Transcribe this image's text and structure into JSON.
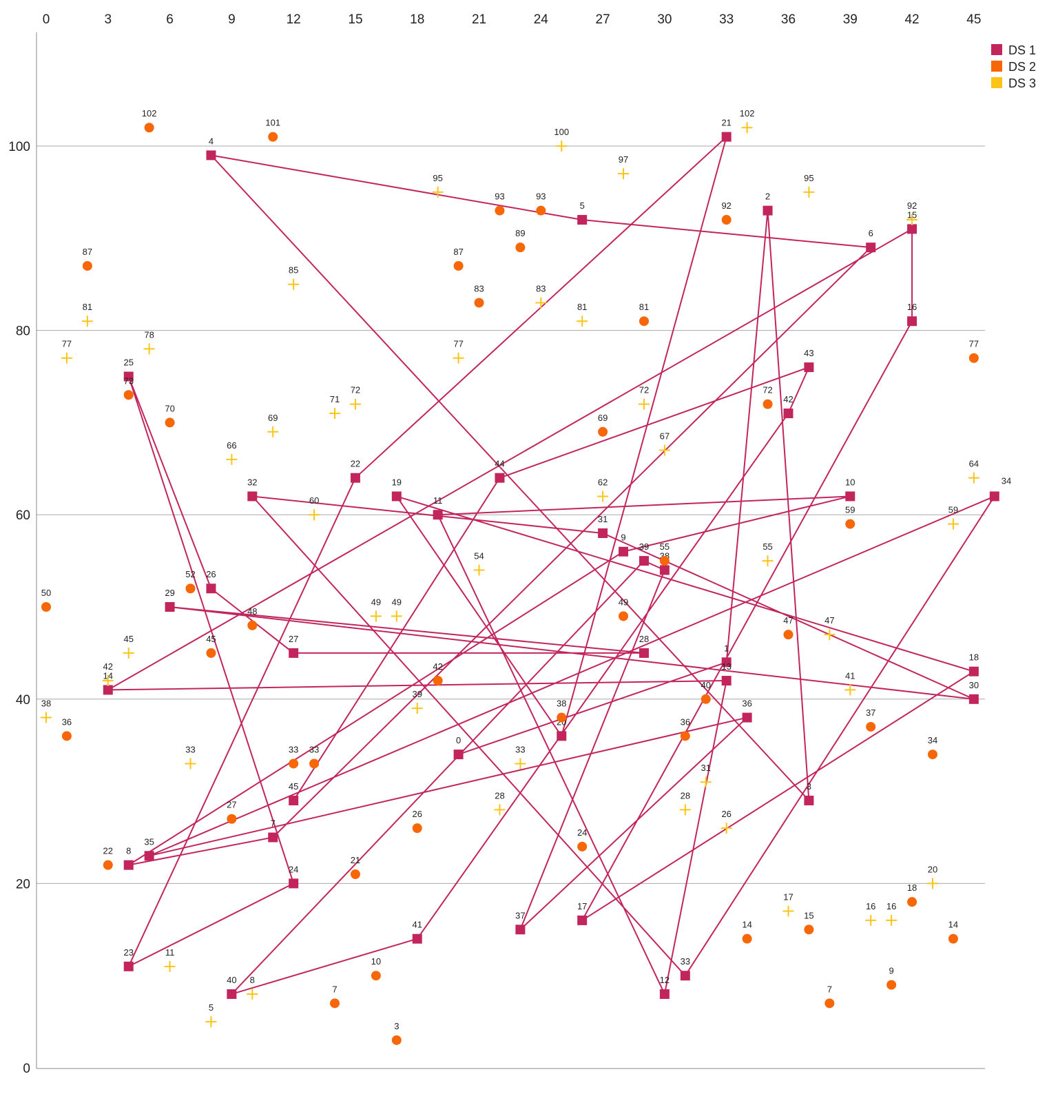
{
  "chart_data": {
    "type": "scatter",
    "title": "",
    "xlabel": "",
    "ylabel": "",
    "x_axis_position": "top",
    "xlim": [
      0,
      46
    ],
    "ylim": [
      0,
      112
    ],
    "xticks": [
      0,
      3,
      6,
      9,
      12,
      15,
      18,
      21,
      24,
      27,
      30,
      33,
      36,
      39,
      42,
      45
    ],
    "yticks": [
      0,
      20,
      40,
      60,
      80,
      100
    ],
    "grid": "horizontal",
    "legend_position": "top-right",
    "series": [
      {
        "name": "DS 1",
        "color": "#c2255c",
        "marker": "square",
        "connected": true,
        "points": [
          {
            "x": 20,
            "y": 34,
            "label": "0"
          },
          {
            "x": 33,
            "y": 44,
            "label": "1"
          },
          {
            "x": 35,
            "y": 93,
            "label": "2"
          },
          {
            "x": 37,
            "y": 29,
            "label": "3"
          },
          {
            "x": 8,
            "y": 99,
            "label": "4"
          },
          {
            "x": 26,
            "y": 92,
            "label": "5"
          },
          {
            "x": 40,
            "y": 89,
            "label": "6"
          },
          {
            "x": 11,
            "y": 25,
            "label": "7"
          },
          {
            "x": 4,
            "y": 22,
            "label": "8"
          },
          {
            "x": 28,
            "y": 56,
            "label": "9"
          },
          {
            "x": 39,
            "y": 62,
            "label": "10"
          },
          {
            "x": 19,
            "y": 60,
            "label": "11"
          },
          {
            "x": 30,
            "y": 8,
            "label": "12"
          },
          {
            "x": 33,
            "y": 42,
            "label": "13"
          },
          {
            "x": 3,
            "y": 41,
            "label": "14"
          },
          {
            "x": 42,
            "y": 91,
            "label": "15"
          },
          {
            "x": 42,
            "y": 81,
            "label": "16"
          },
          {
            "x": 26,
            "y": 16,
            "label": "17"
          },
          {
            "x": 45,
            "y": 43,
            "label": "18"
          },
          {
            "x": 17,
            "y": 62,
            "label": "19"
          },
          {
            "x": 25,
            "y": 36,
            "label": "20"
          },
          {
            "x": 33,
            "y": 101,
            "label": "21"
          },
          {
            "x": 15,
            "y": 64,
            "label": "22"
          },
          {
            "x": 4,
            "y": 11,
            "label": "23"
          },
          {
            "x": 12,
            "y": 20,
            "label": "24"
          },
          {
            "x": 4,
            "y": 75,
            "label": "25"
          },
          {
            "x": 8,
            "y": 52,
            "label": "26"
          },
          {
            "x": 12,
            "y": 45,
            "label": "27"
          },
          {
            "x": 29,
            "y": 45,
            "label": "28"
          },
          {
            "x": 6,
            "y": 50,
            "label": "29"
          },
          {
            "x": 45,
            "y": 40,
            "label": "30"
          },
          {
            "x": 27,
            "y": 58,
            "label": "31"
          },
          {
            "x": 10,
            "y": 62,
            "label": "32"
          },
          {
            "x": 31,
            "y": 10,
            "label": "33"
          },
          {
            "x": 46,
            "y": 62,
            "label": "34"
          },
          {
            "x": 5,
            "y": 23,
            "label": "35"
          },
          {
            "x": 34,
            "y": 38,
            "label": "36"
          },
          {
            "x": 23,
            "y": 15,
            "label": "37"
          },
          {
            "x": 30,
            "y": 54,
            "label": "38"
          },
          {
            "x": 29,
            "y": 55,
            "label": "39"
          },
          {
            "x": 9,
            "y": 8,
            "label": "40"
          },
          {
            "x": 18,
            "y": 14,
            "label": "41"
          },
          {
            "x": 36,
            "y": 71,
            "label": "42"
          },
          {
            "x": 37,
            "y": 76,
            "label": "43"
          },
          {
            "x": 22,
            "y": 64,
            "label": "44"
          },
          {
            "x": 12,
            "y": 29,
            "label": "45"
          }
        ]
      },
      {
        "name": "DS 2",
        "color": "#f76707",
        "marker": "circle",
        "connected": false,
        "points": [
          {
            "x": 0,
            "y": 50,
            "label": "50"
          },
          {
            "x": 1,
            "y": 36,
            "label": "36"
          },
          {
            "x": 2,
            "y": 87,
            "label": "87"
          },
          {
            "x": 3,
            "y": 22,
            "label": "22"
          },
          {
            "x": 4,
            "y": 73,
            "label": "73"
          },
          {
            "x": 5,
            "y": 102,
            "label": "102"
          },
          {
            "x": 6,
            "y": 70,
            "label": "70"
          },
          {
            "x": 7,
            "y": 52,
            "label": "52"
          },
          {
            "x": 8,
            "y": 45,
            "label": "45"
          },
          {
            "x": 9,
            "y": 27,
            "label": "27"
          },
          {
            "x": 10,
            "y": 48,
            "label": "48"
          },
          {
            "x": 11,
            "y": 101,
            "label": "101"
          },
          {
            "x": 12,
            "y": 33,
            "label": "33"
          },
          {
            "x": 13,
            "y": 33,
            "label": "33"
          },
          {
            "x": 14,
            "y": 7,
            "label": "7"
          },
          {
            "x": 15,
            "y": 21,
            "label": "21"
          },
          {
            "x": 16,
            "y": 10,
            "label": "10"
          },
          {
            "x": 17,
            "y": 3,
            "label": "3"
          },
          {
            "x": 18,
            "y": 26,
            "label": "26"
          },
          {
            "x": 19,
            "y": 42,
            "label": "42"
          },
          {
            "x": 20,
            "y": 87,
            "label": "87"
          },
          {
            "x": 21,
            "y": 83,
            "label": "83"
          },
          {
            "x": 22,
            "y": 93,
            "label": "93"
          },
          {
            "x": 23,
            "y": 89,
            "label": "89"
          },
          {
            "x": 24,
            "y": 93,
            "label": "93"
          },
          {
            "x": 25,
            "y": 38,
            "label": "38"
          },
          {
            "x": 26,
            "y": 24,
            "label": "24"
          },
          {
            "x": 27,
            "y": 69,
            "label": "69"
          },
          {
            "x": 28,
            "y": 49,
            "label": "49"
          },
          {
            "x": 29,
            "y": 81,
            "label": "81"
          },
          {
            "x": 30,
            "y": 55,
            "label": "55"
          },
          {
            "x": 31,
            "y": 36,
            "label": "36"
          },
          {
            "x": 32,
            "y": 40,
            "label": "40"
          },
          {
            "x": 33,
            "y": 92,
            "label": "92"
          },
          {
            "x": 34,
            "y": 14,
            "label": "14"
          },
          {
            "x": 35,
            "y": 72,
            "label": "72"
          },
          {
            "x": 36,
            "y": 47,
            "label": "47"
          },
          {
            "x": 37,
            "y": 15,
            "label": "15"
          },
          {
            "x": 38,
            "y": 7,
            "label": "7"
          },
          {
            "x": 39,
            "y": 59,
            "label": "59"
          },
          {
            "x": 40,
            "y": 37,
            "label": "37"
          },
          {
            "x": 41,
            "y": 9,
            "label": "9"
          },
          {
            "x": 42,
            "y": 18,
            "label": "18"
          },
          {
            "x": 43,
            "y": 34,
            "label": "34"
          },
          {
            "x": 44,
            "y": 14,
            "label": "14"
          },
          {
            "x": 45,
            "y": 77,
            "label": "77"
          }
        ]
      },
      {
        "name": "DS 3",
        "color": "#fcc419",
        "marker": "cross",
        "connected": false,
        "points": [
          {
            "x": 0,
            "y": 38,
            "label": "38"
          },
          {
            "x": 1,
            "y": 77,
            "label": "77"
          },
          {
            "x": 2,
            "y": 81,
            "label": "81"
          },
          {
            "x": 3,
            "y": 42,
            "label": "42"
          },
          {
            "x": 4,
            "y": 45,
            "label": "45"
          },
          {
            "x": 5,
            "y": 78,
            "label": "78"
          },
          {
            "x": 6,
            "y": 11,
            "label": "11"
          },
          {
            "x": 7,
            "y": 33,
            "label": "33"
          },
          {
            "x": 8,
            "y": 5,
            "label": "5"
          },
          {
            "x": 9,
            "y": 66,
            "label": "66"
          },
          {
            "x": 10,
            "y": 8,
            "label": "8"
          },
          {
            "x": 11,
            "y": 69,
            "label": "69"
          },
          {
            "x": 12,
            "y": 85,
            "label": "85"
          },
          {
            "x": 13,
            "y": 60,
            "label": "60"
          },
          {
            "x": 14,
            "y": 71,
            "label": "71"
          },
          {
            "x": 15,
            "y": 72,
            "label": "72"
          },
          {
            "x": 16,
            "y": 49,
            "label": "49"
          },
          {
            "x": 17,
            "y": 49,
            "label": "49"
          },
          {
            "x": 18,
            "y": 39,
            "label": "39"
          },
          {
            "x": 19,
            "y": 95,
            "label": "95"
          },
          {
            "x": 20,
            "y": 77,
            "label": "77"
          },
          {
            "x": 21,
            "y": 54,
            "label": "54"
          },
          {
            "x": 22,
            "y": 28,
            "label": "28"
          },
          {
            "x": 23,
            "y": 33,
            "label": "33"
          },
          {
            "x": 24,
            "y": 83,
            "label": "83"
          },
          {
            "x": 25,
            "y": 100,
            "label": "100"
          },
          {
            "x": 26,
            "y": 81,
            "label": "81"
          },
          {
            "x": 27,
            "y": 62,
            "label": "62"
          },
          {
            "x": 28,
            "y": 97,
            "label": "97"
          },
          {
            "x": 29,
            "y": 72,
            "label": "72"
          },
          {
            "x": 30,
            "y": 67,
            "label": "67"
          },
          {
            "x": 31,
            "y": 28,
            "label": "28"
          },
          {
            "x": 32,
            "y": 31,
            "label": "31"
          },
          {
            "x": 33,
            "y": 26,
            "label": "26"
          },
          {
            "x": 34,
            "y": 102,
            "label": "102"
          },
          {
            "x": 35,
            "y": 55,
            "label": "55"
          },
          {
            "x": 36,
            "y": 17,
            "label": "17"
          },
          {
            "x": 37,
            "y": 95,
            "label": "95"
          },
          {
            "x": 38,
            "y": 47,
            "label": "47"
          },
          {
            "x": 39,
            "y": 41,
            "label": "41"
          },
          {
            "x": 40,
            "y": 16,
            "label": "16"
          },
          {
            "x": 41,
            "y": 16,
            "label": "16"
          },
          {
            "x": 42,
            "y": 92,
            "label": "92"
          },
          {
            "x": 43,
            "y": 20,
            "label": "20"
          },
          {
            "x": 44,
            "y": 59,
            "label": "59"
          },
          {
            "x": 45,
            "y": 64,
            "label": "64"
          }
        ]
      }
    ]
  }
}
